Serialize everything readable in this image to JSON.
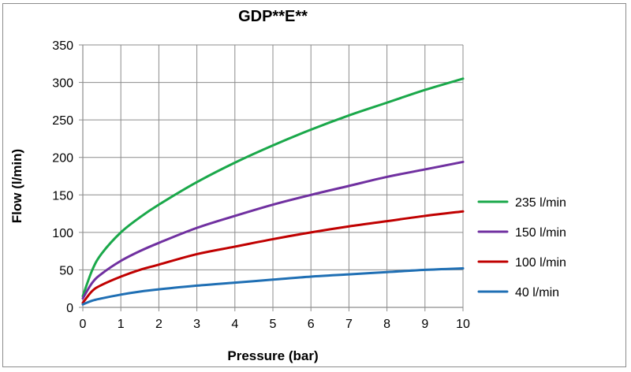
{
  "chart_data": {
    "type": "line",
    "title": "GDP**E**",
    "xlabel": "Pressure (bar)",
    "ylabel": "Flow (l/min)",
    "xlim": [
      0,
      10
    ],
    "ylim": [
      0,
      350
    ],
    "x_ticks": [
      "0",
      "1",
      "2",
      "3",
      "4",
      "5",
      "6",
      "7",
      "8",
      "9",
      "10"
    ],
    "y_ticks": [
      "0",
      "50",
      "100",
      "150",
      "200",
      "250",
      "300",
      "350"
    ],
    "grid": true,
    "legend_position": "right",
    "x": [
      0,
      0.25,
      0.5,
      1,
      1.5,
      2,
      3,
      4,
      5,
      6,
      7,
      8,
      9,
      10
    ],
    "series": [
      {
        "name": "235 l/min",
        "color": "#1aa84a",
        "values": [
          15,
          50,
          72,
          100,
          120,
          137,
          167,
          193,
          216,
          237,
          256,
          273,
          290,
          305
        ]
      },
      {
        "name": "150 l/min",
        "color": "#7030a0",
        "values": [
          12,
          33,
          45,
          62,
          75,
          86,
          106,
          122,
          137,
          150,
          162,
          174,
          184,
          194
        ]
      },
      {
        "name": "100 l/min",
        "color": "#c00000",
        "values": [
          6,
          22,
          30,
          41,
          50,
          57,
          71,
          81,
          91,
          100,
          108,
          115,
          122,
          128
        ]
      },
      {
        "name": "40 l/min",
        "color": "#1f6fb4",
        "values": [
          4,
          9,
          12,
          17,
          21,
          24,
          29,
          33,
          37,
          41,
          44,
          47,
          50,
          52
        ]
      }
    ]
  }
}
